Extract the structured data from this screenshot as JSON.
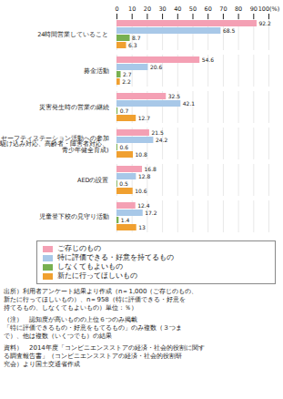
{
  "chart_data": {
    "type": "bar",
    "orientation": "horizontal",
    "categories": [
      "24時間営業していること",
      "募金活動",
      "災害発生時の営業の継続",
      "セーフティステーション活動への参加\n(駆け込み対応、高齢者・障害者対応、\n青少年健全育成)",
      "AEDの設置",
      "児童登下校の見守り活動"
    ],
    "series": [
      {
        "name": "ご存じのもの",
        "color": "#F4A0B4",
        "values": [
          92.2,
          54.6,
          32.5,
          21.5,
          16.8,
          12.4
        ]
      },
      {
        "name": "特に評価できる・好意を持てるもの",
        "color": "#A8C8E8",
        "values": [
          68.5,
          20.6,
          42.1,
          24.2,
          12.8,
          17.2
        ]
      },
      {
        "name": "しなくてもよいもの",
        "color": "#78B050",
        "values": [
          8.7,
          2.7,
          0.7,
          0.6,
          0.5,
          1.4
        ]
      },
      {
        "name": "新たに行ってほしいもの",
        "color": "#F0A030",
        "values": [
          6.3,
          2.2,
          12.7,
          10.8,
          10.6,
          13.0
        ]
      }
    ],
    "xlim": [
      0,
      100
    ],
    "xticks": [
      0,
      10,
      20,
      30,
      40,
      50,
      60,
      70,
      80,
      90,
      {
        "value": 100,
        "label": "100(%)"
      }
    ],
    "grid": true,
    "data_labels": true,
    "legend": "bottom",
    "annotations": [
      "出所）利用者アンケート結果より作成（n＝1,000（ご存じのもの、",
      "新たに行ってほしいもの）、n＝958（特に評価できる・好意を",
      "持てるもの、しなくてもよいもの）単位：％）",
      "（注）　認知度が高いものの上位６つのみ掲載",
      "「特に評価できるもの・好意をもてるもの」のみ複数（３つま",
      "で）、他は複数（いくつでも）の結果",
      "資料）　2014年度「コンビニエンスストアの経済・社会的役割に関す",
      "る調査報告書」（コンビニエンスストアの経済・社会的役割研",
      "究会）より国土交通省作成"
    ]
  }
}
